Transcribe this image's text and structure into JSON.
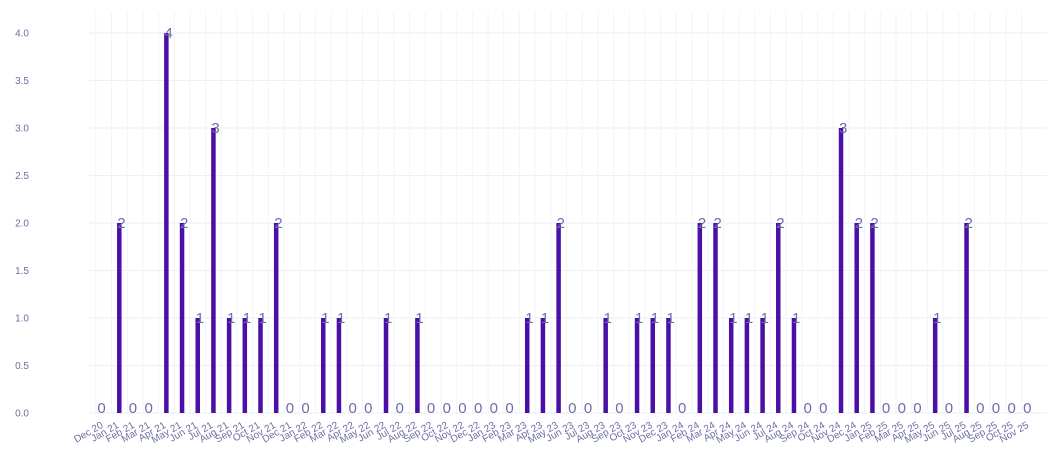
{
  "chart_data": {
    "type": "bar",
    "categories": [
      "Dec 20",
      "Jan 21",
      "Feb 21",
      "Mar 21",
      "Apr 21",
      "May 21",
      "Jun 21",
      "Jul 21",
      "Aug 21",
      "Sep 21",
      "Oct 21",
      "Nov 21",
      "Dec 21",
      "Jan 22",
      "Feb 22",
      "Mar 22",
      "Apr 22",
      "May 22",
      "Jun 22",
      "Jul 22",
      "Aug 22",
      "Sep 22",
      "Oct 22",
      "Nov 22",
      "Dec 22",
      "Jan 23",
      "Feb 23",
      "Mar 23",
      "Apr 23",
      "May 23",
      "Jun 23",
      "Jul 23",
      "Aug 23",
      "Sep 23",
      "Oct 23",
      "Nov 23",
      "Dec 23",
      "Jan 24",
      "Feb 24",
      "Mar 24",
      "Apr 24",
      "May 24",
      "Jun 24",
      "Jul 24",
      "Aug 24",
      "Sep 24",
      "Oct 24",
      "Nov 24",
      "Dec 24",
      "Jan 25",
      "Feb 25",
      "Mar 25",
      "Apr 25",
      "May 25",
      "Jun 25",
      "Jul 25",
      "Aug 25",
      "Sep 25",
      "Oct 25",
      "Nov 25"
    ],
    "values": [
      0,
      2,
      0,
      0,
      4,
      2,
      1,
      3,
      1,
      1,
      1,
      2,
      0,
      0,
      1,
      1,
      0,
      0,
      1,
      0,
      1,
      0,
      0,
      0,
      0,
      0,
      0,
      1,
      1,
      2,
      0,
      0,
      1,
      0,
      1,
      1,
      1,
      0,
      2,
      2,
      1,
      1,
      1,
      2,
      1,
      0,
      0,
      3,
      2,
      2,
      0,
      0,
      0,
      1,
      0,
      2,
      0,
      0,
      0,
      0
    ],
    "ylim": [
      0,
      4.2
    ],
    "yticks": [
      "0.0",
      "0.5",
      "1.0",
      "1.5",
      "2.0",
      "2.5",
      "3.0",
      "3.5",
      "4.0"
    ],
    "title": "",
    "xlabel": "",
    "ylabel": "",
    "grid": true,
    "bar_color": "#4b0fa8",
    "label_color": "#6b6fa3"
  }
}
